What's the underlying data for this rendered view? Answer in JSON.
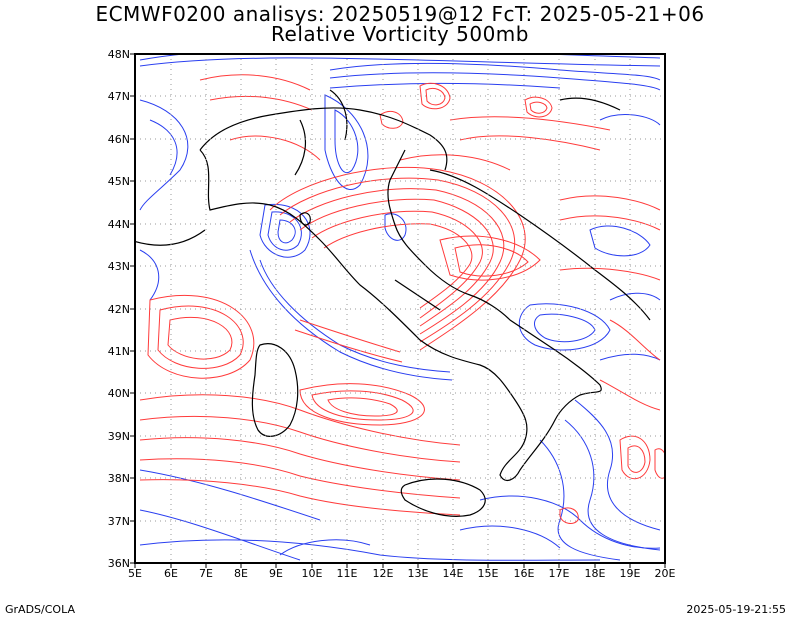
{
  "title": {
    "line1": "ECMWF0200 analisys: 20250519@12 FcT: 2025-05-21+06",
    "line2": "Relative Vorticity 500mb"
  },
  "axes": {
    "lat_labels": [
      "48N",
      "47N",
      "46N",
      "45N",
      "44N",
      "43N",
      "42N",
      "41N",
      "40N",
      "39N",
      "38N",
      "37N",
      "36N"
    ],
    "lon_labels": [
      "5E",
      "6E",
      "7E",
      "8E",
      "9E",
      "10E",
      "11E",
      "12E",
      "13E",
      "14E",
      "15E",
      "16E",
      "17E",
      "18E",
      "19E",
      "20E"
    ],
    "lat_range": [
      36,
      48
    ],
    "lon_range": [
      5,
      20
    ],
    "grid": true
  },
  "legend": {
    "positive_vorticity_color": "#ff3b3b",
    "negative_vorticity_color": "#2a3ff0",
    "coastline_color": "#000000",
    "grid_color": "#9a9a9a"
  },
  "footer": {
    "left": "GrADS/COLA",
    "right": "2025-05-19-21:55"
  }
}
